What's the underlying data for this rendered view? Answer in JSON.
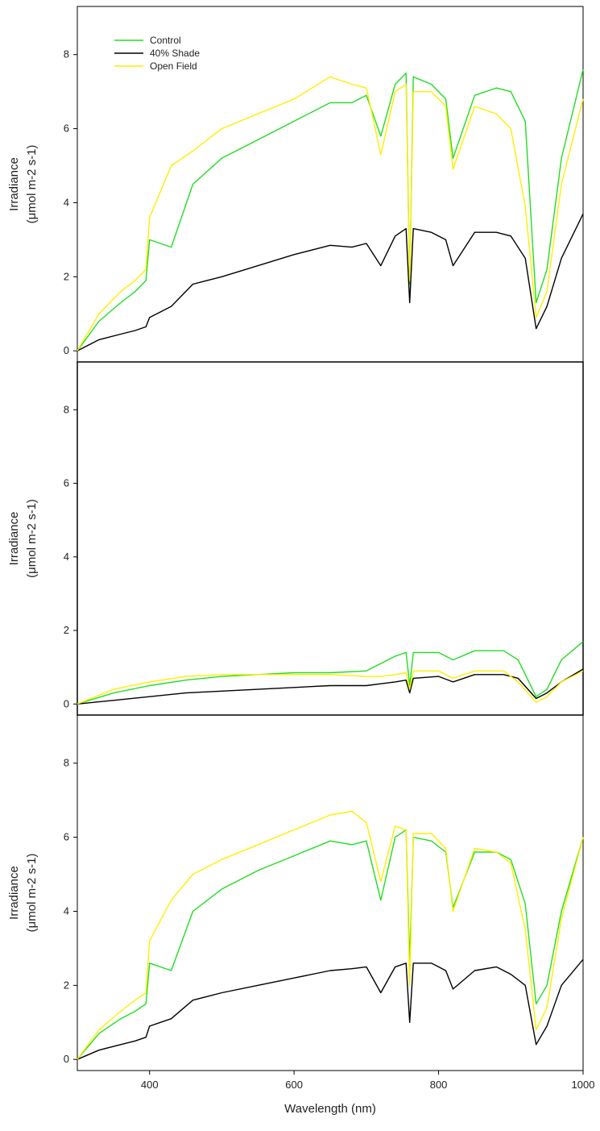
{
  "chart_data": [
    {
      "type": "line",
      "panel": "top",
      "ylabel_line1": "Irradiance",
      "ylabel_line2": "(μmol m-2 s-1)",
      "xlim": [
        300,
        1000
      ],
      "ylim": [
        -0.3,
        9.3
      ],
      "yticks": [
        0,
        2,
        4,
        6,
        8
      ],
      "xticks": [],
      "legend": {
        "placement": "top-left",
        "entries": [
          "Control",
          "40% Shade",
          "Open Field"
        ]
      },
      "x": [
        300,
        330,
        360,
        380,
        395,
        400,
        430,
        460,
        500,
        550,
        600,
        650,
        680,
        700,
        720,
        740,
        755,
        760,
        765,
        790,
        810,
        820,
        850,
        880,
        900,
        920,
        935,
        950,
        970,
        1000
      ],
      "series": [
        {
          "name": "Control",
          "color": "#22dd22",
          "values": [
            0,
            0.8,
            1.3,
            1.6,
            1.9,
            3.0,
            2.8,
            4.5,
            5.2,
            5.7,
            6.2,
            6.7,
            6.7,
            6.9,
            5.8,
            7.2,
            7.5,
            1.8,
            7.4,
            7.2,
            6.8,
            5.2,
            6.9,
            7.1,
            7.0,
            6.2,
            1.3,
            2.2,
            5.2,
            7.6
          ]
        },
        {
          "name": "40% Shade",
          "color": "#000000",
          "values": [
            0,
            0.3,
            0.45,
            0.55,
            0.65,
            0.9,
            1.2,
            1.8,
            2.0,
            2.3,
            2.6,
            2.85,
            2.8,
            2.9,
            2.3,
            3.1,
            3.3,
            1.3,
            3.3,
            3.2,
            3.0,
            2.3,
            3.2,
            3.2,
            3.1,
            2.5,
            0.6,
            1.2,
            2.5,
            3.7
          ]
        },
        {
          "name": "Open Field",
          "color": "#ffee00",
          "values": [
            0,
            1.0,
            1.6,
            1.9,
            2.2,
            3.6,
            5.0,
            5.4,
            6.0,
            6.4,
            6.8,
            7.4,
            7.2,
            7.1,
            5.3,
            7.0,
            7.2,
            1.9,
            7.0,
            7.0,
            6.6,
            4.9,
            6.6,
            6.4,
            6.0,
            3.9,
            0.9,
            1.6,
            4.5,
            6.8
          ]
        }
      ]
    },
    {
      "type": "line",
      "panel": "middle",
      "ylabel_line1": "Irradiance",
      "ylabel_line2": "(μmol m-2 s-1)",
      "xlim": [
        300,
        1000
      ],
      "ylim": [
        -0.3,
        9.3
      ],
      "yticks": [
        0,
        2,
        4,
        6,
        8
      ],
      "xticks": [],
      "x": [
        300,
        350,
        400,
        450,
        500,
        550,
        600,
        650,
        700,
        720,
        740,
        755,
        760,
        765,
        800,
        820,
        850,
        890,
        910,
        935,
        950,
        970,
        1000
      ],
      "series": [
        {
          "name": "Control",
          "color": "#22dd22",
          "values": [
            0,
            0.3,
            0.5,
            0.65,
            0.75,
            0.8,
            0.85,
            0.85,
            0.9,
            1.1,
            1.3,
            1.4,
            0.5,
            1.4,
            1.4,
            1.2,
            1.45,
            1.45,
            1.2,
            0.2,
            0.4,
            1.2,
            1.7
          ]
        },
        {
          "name": "40% Shade",
          "color": "#000000",
          "values": [
            0,
            0.1,
            0.2,
            0.3,
            0.35,
            0.4,
            0.45,
            0.5,
            0.5,
            0.55,
            0.6,
            0.65,
            0.3,
            0.7,
            0.75,
            0.6,
            0.8,
            0.8,
            0.7,
            0.15,
            0.3,
            0.6,
            0.95
          ]
        },
        {
          "name": "Open Field",
          "color": "#ffee00",
          "values": [
            0,
            0.4,
            0.6,
            0.75,
            0.8,
            0.8,
            0.8,
            0.8,
            0.75,
            0.75,
            0.8,
            0.85,
            0.4,
            0.9,
            0.9,
            0.7,
            0.9,
            0.9,
            0.6,
            0.05,
            0.2,
            0.6,
            0.9
          ]
        }
      ]
    },
    {
      "type": "line",
      "panel": "bottom",
      "ylabel_line1": "Irradiance",
      "ylabel_line2": "(μmol m-2 s-1)",
      "xlabel": "Wavelength (nm)",
      "xlim": [
        300,
        1000
      ],
      "ylim": [
        -0.3,
        9.3
      ],
      "yticks": [
        0,
        2,
        4,
        6,
        8
      ],
      "xticks": [
        400,
        600,
        800,
        1000
      ],
      "x": [
        300,
        330,
        360,
        380,
        395,
        400,
        430,
        460,
        500,
        550,
        600,
        650,
        680,
        700,
        720,
        740,
        755,
        760,
        765,
        790,
        810,
        820,
        850,
        880,
        900,
        920,
        935,
        950,
        970,
        1000
      ],
      "series": [
        {
          "name": "Control",
          "color": "#22dd22",
          "values": [
            0,
            0.7,
            1.1,
            1.3,
            1.5,
            2.6,
            2.4,
            4.0,
            4.6,
            5.1,
            5.5,
            5.9,
            5.8,
            5.9,
            4.3,
            6.0,
            6.2,
            2.6,
            6.0,
            5.9,
            5.6,
            4.1,
            5.6,
            5.6,
            5.4,
            4.2,
            1.5,
            2.0,
            4.0,
            6.0
          ]
        },
        {
          "name": "40% Shade",
          "color": "#000000",
          "values": [
            0,
            0.25,
            0.4,
            0.5,
            0.6,
            0.9,
            1.1,
            1.6,
            1.8,
            2.0,
            2.2,
            2.4,
            2.45,
            2.5,
            1.8,
            2.5,
            2.6,
            1.0,
            2.6,
            2.6,
            2.4,
            1.9,
            2.4,
            2.5,
            2.3,
            2.0,
            0.4,
            0.9,
            2.0,
            2.7
          ]
        },
        {
          "name": "Open Field",
          "color": "#ffee00",
          "values": [
            0,
            0.8,
            1.3,
            1.6,
            1.8,
            3.2,
            4.3,
            5.0,
            5.4,
            5.8,
            6.2,
            6.6,
            6.7,
            6.4,
            4.8,
            6.3,
            6.2,
            2.0,
            6.1,
            6.1,
            5.7,
            4.0,
            5.7,
            5.6,
            5.3,
            3.5,
            0.8,
            1.4,
            3.8,
            6.0
          ]
        }
      ]
    }
  ]
}
